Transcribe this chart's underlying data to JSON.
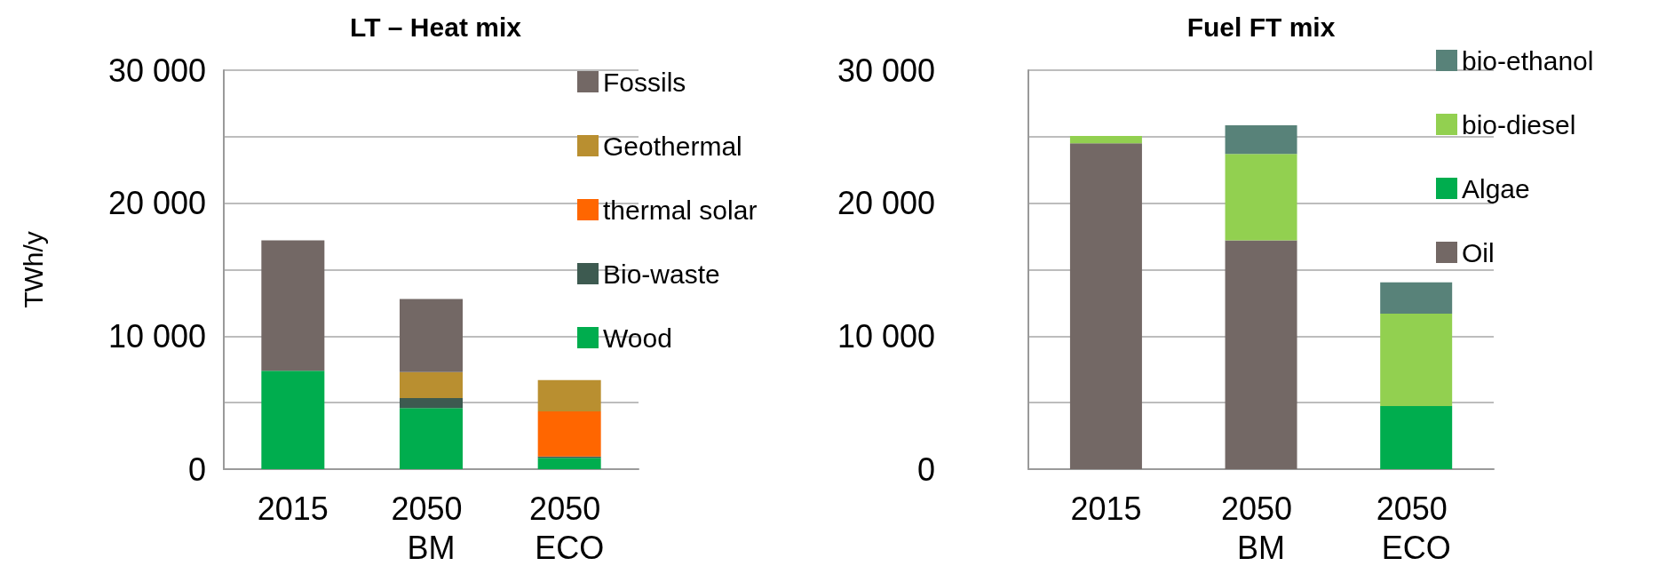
{
  "chart_data": [
    {
      "type": "bar",
      "title": "LT – Heat mix",
      "ylabel": "TWh/y",
      "categories": [
        "2015",
        "2050 BM",
        "2050 ECO"
      ],
      "stacked": true,
      "ylim": [
        0,
        30000
      ],
      "yticks": [
        0,
        {
          "value": 5000,
          "label": null
        },
        {
          "value": 10000,
          "label": "10 000"
        },
        {
          "value": 15000,
          "label": null
        },
        {
          "value": 20000,
          "label": "20 000"
        },
        {
          "value": 25000,
          "label": null
        },
        {
          "value": 30000,
          "label": "30 000"
        }
      ],
      "grid": "y",
      "legend": "right",
      "series": [
        {
          "name": "Wood",
          "color": "#00ad4e",
          "values": [
            7400,
            4600,
            850
          ]
        },
        {
          "name": "Bio-waste",
          "color": "#3d5a50",
          "values": [
            0,
            750,
            100
          ]
        },
        {
          "name": "thermal solar",
          "color": "#ff6600",
          "values": [
            0,
            0,
            3400
          ]
        },
        {
          "name": "Geothermal",
          "color": "#b98f30",
          "values": [
            0,
            1950,
            2350
          ]
        },
        {
          "name": "Fossils",
          "color": "#736865",
          "values": [
            9800,
            5500,
            0
          ]
        }
      ]
    },
    {
      "type": "bar",
      "title": "Fuel FT mix",
      "categories": [
        "2015",
        "2050 BM",
        "2050 ECO"
      ],
      "stacked": true,
      "ylim": [
        0,
        30000
      ],
      "yticks": [
        0,
        {
          "value": 5000,
          "label": null
        },
        {
          "value": 10000,
          "label": "10 000"
        },
        {
          "value": 15000,
          "label": null
        },
        {
          "value": 20000,
          "label": "20 000"
        },
        {
          "value": 25000,
          "label": null
        },
        {
          "value": 30000,
          "label": "30 000"
        }
      ],
      "grid": "y",
      "legend": "right",
      "series": [
        {
          "name": "Oil",
          "color": "#736865",
          "values": [
            24500,
            17200,
            0
          ]
        },
        {
          "name": "Algae",
          "color": "#00ad4e",
          "values": [
            0,
            0,
            4750
          ]
        },
        {
          "name": "bio-diesel",
          "color": "#92d050",
          "values": [
            550,
            6500,
            6950
          ]
        },
        {
          "name": "bio-ethanol",
          "color": "#588279",
          "values": [
            0,
            2150,
            2350
          ]
        }
      ]
    }
  ]
}
